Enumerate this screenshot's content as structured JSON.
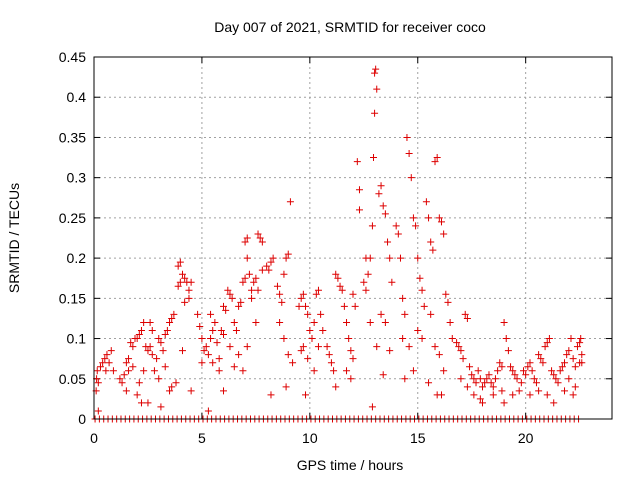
{
  "chart_data": {
    "type": "scatter",
    "title": "Day 007 of 2021, SRMTID for receiver coco",
    "xlabel": "GPS time / hours",
    "ylabel": "SRMTID / TECUs",
    "xlim": [
      0,
      24
    ],
    "ylim": [
      0,
      0.45
    ],
    "xticks": [
      0,
      5,
      10,
      15,
      20
    ],
    "yticks": [
      0,
      0.05,
      0.1,
      0.15,
      0.2,
      0.25,
      0.3,
      0.35,
      0.4,
      0.45
    ],
    "xtick_labels": [
      "0",
      "5",
      "10",
      "15",
      "20"
    ],
    "ytick_labels": [
      "0",
      "0.05",
      "0.1",
      "0.15",
      "0.2",
      "0.25",
      "0.3",
      "0.35",
      "0.4",
      "0.45"
    ],
    "grid": true,
    "marker": "+",
    "color": "#dd0000",
    "zero_band": {
      "x_start": 0.05,
      "x_end": 22.6,
      "step": 0.2,
      "y": 0.0
    },
    "series": [
      {
        "name": "SRMTID",
        "points": [
          [
            0.1,
            0.035
          ],
          [
            0.12,
            0.05
          ],
          [
            0.15,
            0.06
          ],
          [
            0.2,
            0.045
          ],
          [
            0.3,
            0.065
          ],
          [
            0.4,
            0.07
          ],
          [
            0.5,
            0.075
          ],
          [
            0.55,
            0.06
          ],
          [
            0.6,
            0.08
          ],
          [
            0.7,
            0.07
          ],
          [
            0.8,
            0.085
          ],
          [
            0.9,
            0.06
          ],
          [
            0.2,
            0.01
          ],
          [
            1.2,
            0.05
          ],
          [
            1.3,
            0.045
          ],
          [
            1.4,
            0.055
          ],
          [
            1.5,
            0.07
          ],
          [
            1.6,
            0.075
          ],
          [
            1.7,
            0.095
          ],
          [
            1.8,
            0.09
          ],
          [
            1.9,
            0.1
          ],
          [
            2.0,
            0.1
          ],
          [
            2.1,
            0.105
          ],
          [
            2.2,
            0.11
          ],
          [
            2.3,
            0.12
          ],
          [
            2.4,
            0.09
          ],
          [
            2.5,
            0.085
          ],
          [
            2.6,
            0.12
          ],
          [
            2.7,
            0.08
          ],
          [
            1.6,
            0.06
          ],
          [
            1.8,
            0.065
          ],
          [
            2.1,
            0.045
          ],
          [
            2.3,
            0.06
          ],
          [
            2.6,
            0.09
          ],
          [
            2.7,
            0.11
          ],
          [
            1.5,
            0.035
          ],
          [
            2.0,
            0.03
          ],
          [
            2.2,
            0.02
          ],
          [
            2.5,
            0.02
          ],
          [
            2.8,
            0.06
          ],
          [
            2.9,
            0.075
          ],
          [
            3.0,
            0.1
          ],
          [
            3.1,
            0.095
          ],
          [
            3.2,
            0.085
          ],
          [
            3.3,
            0.105
          ],
          [
            3.4,
            0.11
          ],
          [
            3.5,
            0.12
          ],
          [
            3.6,
            0.125
          ],
          [
            3.7,
            0.13
          ],
          [
            3.0,
            0.05
          ],
          [
            3.3,
            0.065
          ],
          [
            3.6,
            0.04
          ],
          [
            3.8,
            0.045
          ],
          [
            3.1,
            0.015
          ],
          [
            3.5,
            0.035
          ],
          [
            3.9,
            0.19
          ],
          [
            4.0,
            0.195
          ],
          [
            4.1,
            0.18
          ],
          [
            4.2,
            0.175
          ],
          [
            4.3,
            0.17
          ],
          [
            4.4,
            0.16
          ],
          [
            4.5,
            0.17
          ],
          [
            3.9,
            0.165
          ],
          [
            4.0,
            0.17
          ],
          [
            4.2,
            0.145
          ],
          [
            4.4,
            0.15
          ],
          [
            4.1,
            0.085
          ],
          [
            4.5,
            0.035
          ],
          [
            4.8,
            0.13
          ],
          [
            4.9,
            0.115
          ],
          [
            5.0,
            0.1
          ],
          [
            5.1,
            0.085
          ],
          [
            5.2,
            0.09
          ],
          [
            5.3,
            0.08
          ],
          [
            5.4,
            0.1
          ],
          [
            5.5,
            0.11
          ],
          [
            5.6,
            0.12
          ],
          [
            5.7,
            0.095
          ],
          [
            5.8,
            0.075
          ],
          [
            5.9,
            0.11
          ],
          [
            6.0,
            0.105
          ],
          [
            5.0,
            0.07
          ],
          [
            5.5,
            0.07
          ],
          [
            5.8,
            0.06
          ],
          [
            5.4,
            0.13
          ],
          [
            5.3,
            0.01
          ],
          [
            6.0,
            0.035
          ],
          [
            6.0,
            0.14
          ],
          [
            6.1,
            0.135
          ],
          [
            6.2,
            0.16
          ],
          [
            6.3,
            0.155
          ],
          [
            6.4,
            0.15
          ],
          [
            6.5,
            0.12
          ],
          [
            6.6,
            0.11
          ],
          [
            6.7,
            0.14
          ],
          [
            6.8,
            0.145
          ],
          [
            6.9,
            0.17
          ],
          [
            7.0,
            0.175
          ],
          [
            6.3,
            0.09
          ],
          [
            6.5,
            0.065
          ],
          [
            6.7,
            0.08
          ],
          [
            6.9,
            0.06
          ],
          [
            7.1,
            0.09
          ],
          [
            7.0,
            0.22
          ],
          [
            7.1,
            0.225
          ],
          [
            7.2,
            0.18
          ],
          [
            7.3,
            0.16
          ],
          [
            7.4,
            0.17
          ],
          [
            7.5,
            0.175
          ],
          [
            7.6,
            0.23
          ],
          [
            7.7,
            0.225
          ],
          [
            7.8,
            0.22
          ],
          [
            7.3,
            0.15
          ],
          [
            7.5,
            0.12
          ],
          [
            7.8,
            0.185
          ],
          [
            8.0,
            0.19
          ],
          [
            8.1,
            0.185
          ],
          [
            8.2,
            0.195
          ],
          [
            8.3,
            0.2
          ],
          [
            7.1,
            0.2
          ],
          [
            7.6,
            0.16
          ],
          [
            8.2,
            0.03
          ],
          [
            8.5,
            0.165
          ],
          [
            8.6,
            0.155
          ],
          [
            8.7,
            0.145
          ],
          [
            8.8,
            0.18
          ],
          [
            8.9,
            0.2
          ],
          [
            9.0,
            0.205
          ],
          [
            9.1,
            0.27
          ],
          [
            8.6,
            0.12
          ],
          [
            8.8,
            0.1
          ],
          [
            9.0,
            0.08
          ],
          [
            9.2,
            0.07
          ],
          [
            8.9,
            0.04
          ],
          [
            9.5,
            0.14
          ],
          [
            9.6,
            0.15
          ],
          [
            9.7,
            0.155
          ],
          [
            9.8,
            0.14
          ],
          [
            9.9,
            0.13
          ],
          [
            10.0,
            0.11
          ],
          [
            10.1,
            0.1
          ],
          [
            10.2,
            0.12
          ],
          [
            10.3,
            0.155
          ],
          [
            10.4,
            0.16
          ],
          [
            10.5,
            0.13
          ],
          [
            10.6,
            0.11
          ],
          [
            9.6,
            0.085
          ],
          [
            9.7,
            0.09
          ],
          [
            9.9,
            0.075
          ],
          [
            10.2,
            0.06
          ],
          [
            10.4,
            0.09
          ],
          [
            9.8,
            0.03
          ],
          [
            10.8,
            0.09
          ],
          [
            10.9,
            0.08
          ],
          [
            11.0,
            0.07
          ],
          [
            11.1,
            0.06
          ],
          [
            11.2,
            0.18
          ],
          [
            11.3,
            0.175
          ],
          [
            11.4,
            0.165
          ],
          [
            11.5,
            0.16
          ],
          [
            11.6,
            0.14
          ],
          [
            11.7,
            0.12
          ],
          [
            11.8,
            0.1
          ],
          [
            11.9,
            0.085
          ],
          [
            12.0,
            0.075
          ],
          [
            11.2,
            0.04
          ],
          [
            11.7,
            0.06
          ],
          [
            11.9,
            0.05
          ],
          [
            12.0,
            0.155
          ],
          [
            12.1,
            0.14
          ],
          [
            12.2,
            0.32
          ],
          [
            12.3,
            0.285
          ],
          [
            12.3,
            0.26
          ],
          [
            12.5,
            0.17
          ],
          [
            12.6,
            0.16
          ],
          [
            12.7,
            0.18
          ],
          [
            12.8,
            0.2
          ],
          [
            12.9,
            0.24
          ],
          [
            12.95,
            0.325
          ],
          [
            13.0,
            0.38
          ],
          [
            13.0,
            0.43
          ],
          [
            13.05,
            0.435
          ],
          [
            13.1,
            0.41
          ],
          [
            13.2,
            0.28
          ],
          [
            13.3,
            0.29
          ],
          [
            13.4,
            0.265
          ],
          [
            13.5,
            0.255
          ],
          [
            13.6,
            0.22
          ],
          [
            13.7,
            0.2
          ],
          [
            13.8,
            0.17
          ],
          [
            12.6,
            0.2
          ],
          [
            12.8,
            0.12
          ],
          [
            13.1,
            0.09
          ],
          [
            13.3,
            0.13
          ],
          [
            13.5,
            0.12
          ],
          [
            13.7,
            0.085
          ],
          [
            13.4,
            0.055
          ],
          [
            12.9,
            0.015
          ],
          [
            14.0,
            0.24
          ],
          [
            14.1,
            0.23
          ],
          [
            14.2,
            0.2
          ],
          [
            14.3,
            0.15
          ],
          [
            14.4,
            0.13
          ],
          [
            14.5,
            0.35
          ],
          [
            14.6,
            0.33
          ],
          [
            14.7,
            0.3
          ],
          [
            14.8,
            0.25
          ],
          [
            14.9,
            0.24
          ],
          [
            15.0,
            0.2
          ],
          [
            15.1,
            0.175
          ],
          [
            15.2,
            0.16
          ],
          [
            15.3,
            0.14
          ],
          [
            14.3,
            0.1
          ],
          [
            14.6,
            0.09
          ],
          [
            14.8,
            0.06
          ],
          [
            15.0,
            0.11
          ],
          [
            15.2,
            0.1
          ],
          [
            14.4,
            0.05
          ],
          [
            15.4,
            0.27
          ],
          [
            15.5,
            0.25
          ],
          [
            15.6,
            0.22
          ],
          [
            15.7,
            0.21
          ],
          [
            15.8,
            0.32
          ],
          [
            15.9,
            0.325
          ],
          [
            16.0,
            0.25
          ],
          [
            16.1,
            0.245
          ],
          [
            16.2,
            0.23
          ],
          [
            16.3,
            0.155
          ],
          [
            16.4,
            0.145
          ],
          [
            16.5,
            0.12
          ],
          [
            16.6,
            0.1
          ],
          [
            15.6,
            0.13
          ],
          [
            15.8,
            0.09
          ],
          [
            16.0,
            0.08
          ],
          [
            16.2,
            0.06
          ],
          [
            15.5,
            0.045
          ],
          [
            15.9,
            0.03
          ],
          [
            16.1,
            0.03
          ],
          [
            16.8,
            0.095
          ],
          [
            16.9,
            0.09
          ],
          [
            17.0,
            0.085
          ],
          [
            17.1,
            0.075
          ],
          [
            17.2,
            0.13
          ],
          [
            17.3,
            0.125
          ],
          [
            17.4,
            0.065
          ],
          [
            17.5,
            0.055
          ],
          [
            17.6,
            0.05
          ],
          [
            17.7,
            0.045
          ],
          [
            17.8,
            0.06
          ],
          [
            17.9,
            0.05
          ],
          [
            18.0,
            0.04
          ],
          [
            18.1,
            0.045
          ],
          [
            18.2,
            0.05
          ],
          [
            17.0,
            0.05
          ],
          [
            17.3,
            0.04
          ],
          [
            17.6,
            0.03
          ],
          [
            17.9,
            0.025
          ],
          [
            18.0,
            0.02
          ],
          [
            18.3,
            0.055
          ],
          [
            18.4,
            0.045
          ],
          [
            18.5,
            0.04
          ],
          [
            18.6,
            0.05
          ],
          [
            18.7,
            0.06
          ],
          [
            18.8,
            0.07
          ],
          [
            18.9,
            0.065
          ],
          [
            19.0,
            0.12
          ],
          [
            19.1,
            0.1
          ],
          [
            19.2,
            0.085
          ],
          [
            19.3,
            0.065
          ],
          [
            19.4,
            0.06
          ],
          [
            19.5,
            0.055
          ],
          [
            19.6,
            0.05
          ],
          [
            19.7,
            0.035
          ],
          [
            19.8,
            0.045
          ],
          [
            18.5,
            0.03
          ],
          [
            18.9,
            0.035
          ],
          [
            19.4,
            0.03
          ],
          [
            19.0,
            0.02
          ],
          [
            19.9,
            0.06
          ],
          [
            20.0,
            0.055
          ],
          [
            20.1,
            0.065
          ],
          [
            20.2,
            0.07
          ],
          [
            20.3,
            0.06
          ],
          [
            20.4,
            0.05
          ],
          [
            20.5,
            0.045
          ],
          [
            20.6,
            0.08
          ],
          [
            20.7,
            0.075
          ],
          [
            20.8,
            0.07
          ],
          [
            20.9,
            0.09
          ],
          [
            21.0,
            0.095
          ],
          [
            21.1,
            0.1
          ],
          [
            21.2,
            0.06
          ],
          [
            21.3,
            0.055
          ],
          [
            21.4,
            0.05
          ],
          [
            21.5,
            0.045
          ],
          [
            20.2,
            0.03
          ],
          [
            20.6,
            0.035
          ],
          [
            21.0,
            0.03
          ],
          [
            21.3,
            0.02
          ],
          [
            21.6,
            0.06
          ],
          [
            21.7,
            0.065
          ],
          [
            21.8,
            0.07
          ],
          [
            21.9,
            0.08
          ],
          [
            22.0,
            0.085
          ],
          [
            22.1,
            0.1
          ],
          [
            22.2,
            0.075
          ],
          [
            22.3,
            0.065
          ],
          [
            22.4,
            0.09
          ],
          [
            22.5,
            0.095
          ],
          [
            22.55,
            0.1
          ],
          [
            22.6,
            0.08
          ],
          [
            22.0,
            0.05
          ],
          [
            22.3,
            0.04
          ],
          [
            22.5,
            0.07
          ],
          [
            21.8,
            0.035
          ],
          [
            22.2,
            0.03
          ],
          [
            22.6,
            0.07
          ]
        ]
      }
    ]
  }
}
